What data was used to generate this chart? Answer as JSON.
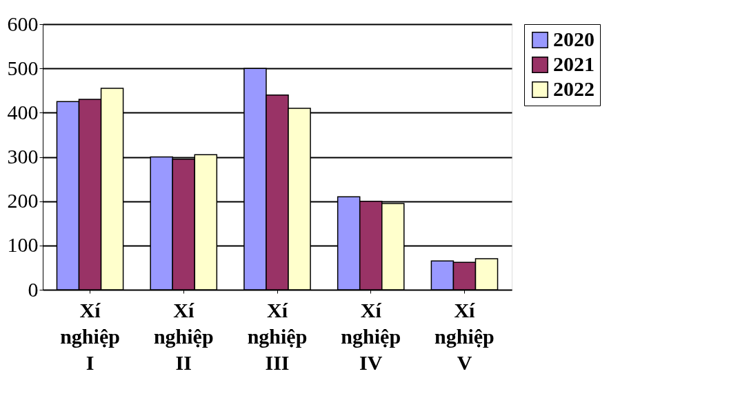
{
  "chart_data": {
    "type": "bar",
    "categories": [
      "Xí nghiệp I",
      "Xí nghiệp II",
      "Xí nghiệp III",
      "Xí nghiệp IV",
      "Xí nghiệp V"
    ],
    "series": [
      {
        "name": "2020",
        "color": "#9999ff",
        "values": [
          425,
          300,
          500,
          210,
          65
        ]
      },
      {
        "name": "2021",
        "color": "#993366",
        "values": [
          430,
          295,
          440,
          200,
          62
        ]
      },
      {
        "name": "2022",
        "color": "#ffffcc",
        "values": [
          455,
          305,
          410,
          195,
          70
        ]
      }
    ],
    "ylim": [
      0,
      600
    ],
    "yticks": [
      0,
      100,
      200,
      300,
      400,
      500,
      600
    ],
    "grid": "y",
    "legend": "right"
  }
}
